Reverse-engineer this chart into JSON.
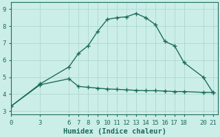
{
  "xlabel": "Humidex (Indice chaleur)",
  "background_color": "#cceee8",
  "grid_color": "#aad8d0",
  "line_color": "#1a6b5a",
  "x_upper": [
    0,
    3,
    6,
    7,
    8,
    9,
    10,
    11,
    12,
    13,
    14,
    15,
    16,
    17,
    18,
    20,
    21
  ],
  "y_upper": [
    3.3,
    4.6,
    5.6,
    6.4,
    6.85,
    7.7,
    8.4,
    8.5,
    8.55,
    8.75,
    8.5,
    8.1,
    7.1,
    6.85,
    5.85,
    5.0,
    4.1
  ],
  "x_lower": [
    0,
    3,
    6,
    7,
    8,
    9,
    10,
    11,
    12,
    13,
    14,
    15,
    16,
    17,
    18,
    20,
    21
  ],
  "y_lower": [
    3.3,
    4.55,
    4.9,
    4.45,
    4.4,
    4.35,
    4.3,
    4.28,
    4.25,
    4.22,
    4.2,
    4.2,
    4.18,
    4.15,
    4.15,
    4.1,
    4.1
  ],
  "xticks": [
    0,
    3,
    6,
    7,
    8,
    9,
    10,
    11,
    12,
    13,
    14,
    15,
    16,
    17,
    18,
    20,
    21
  ],
  "yticks": [
    3,
    4,
    5,
    6,
    7,
    8,
    9
  ],
  "xlim": [
    0,
    21.5
  ],
  "ylim": [
    2.8,
    9.4
  ],
  "marker": "+",
  "markersize": 4,
  "linewidth": 1.0,
  "xlabel_fontsize": 7.5,
  "tick_fontsize": 6.5
}
